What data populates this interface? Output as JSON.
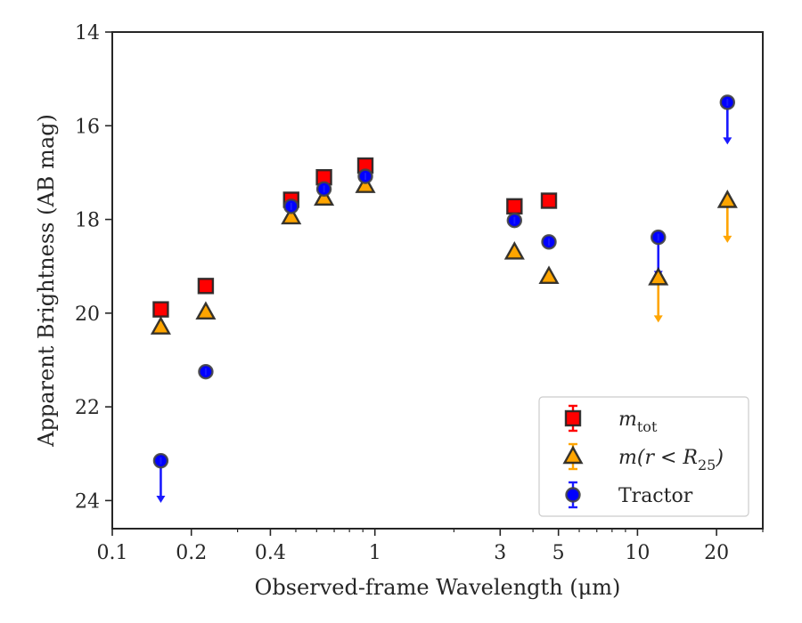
{
  "chart_data": {
    "type": "scatter",
    "xlabel": "Observed-frame Wavelength (μm)",
    "ylabel": "Apparent Brightness (AB mag)",
    "xscale": "log",
    "xlim": [
      0.1,
      30
    ],
    "ylim": [
      24.6,
      14
    ],
    "y_inverted": true,
    "grid": false,
    "legend_position": "lower-right",
    "xticks": [
      {
        "value": 0.1,
        "label": "0.1"
      },
      {
        "value": 0.2,
        "label": "0.2"
      },
      {
        "value": 0.4,
        "label": "0.4"
      },
      {
        "value": 1,
        "label": "1"
      },
      {
        "value": 3,
        "label": "3"
      },
      {
        "value": 5,
        "label": "5"
      },
      {
        "value": 10,
        "label": "10"
      },
      {
        "value": 20,
        "label": "20"
      }
    ],
    "yticks": [
      {
        "value": 14,
        "label": "14"
      },
      {
        "value": 16,
        "label": "16"
      },
      {
        "value": 18,
        "label": "18"
      },
      {
        "value": 20,
        "label": "20"
      },
      {
        "value": 22,
        "label": "22"
      },
      {
        "value": 24,
        "label": "24"
      }
    ],
    "series": [
      {
        "name": "m_tot",
        "legend_label": {
          "base": "m",
          "sub": "tot"
        },
        "marker": "square",
        "color": "#ff0000",
        "errorbar_color": "#ff0000",
        "points": [
          {
            "x": 0.153,
            "y": 19.92
          },
          {
            "x": 0.227,
            "y": 19.42
          },
          {
            "x": 0.48,
            "y": 17.58
          },
          {
            "x": 0.64,
            "y": 17.1
          },
          {
            "x": 0.92,
            "y": 16.85
          },
          {
            "x": 3.4,
            "y": 17.72
          },
          {
            "x": 4.6,
            "y": 17.6
          }
        ]
      },
      {
        "name": "m(r<R25)",
        "legend_label": {
          "base": "m(r < R",
          "sub": "25",
          "end": ")"
        },
        "marker": "triangle",
        "color": "#ffa500",
        "errorbar_color": "#ffa500",
        "points": [
          {
            "x": 0.153,
            "y": 20.3
          },
          {
            "x": 0.227,
            "y": 19.98
          },
          {
            "x": 0.48,
            "y": 17.95
          },
          {
            "x": 0.64,
            "y": 17.55
          },
          {
            "x": 0.92,
            "y": 17.28
          },
          {
            "x": 3.4,
            "y": 18.7
          },
          {
            "x": 4.6,
            "y": 19.22
          },
          {
            "x": 12,
            "y": 19.25,
            "upper_limit_to": 20.2
          },
          {
            "x": 22,
            "y": 17.6,
            "upper_limit_to": 18.5
          }
        ]
      },
      {
        "name": "Tractor",
        "legend_label": {
          "base": "Tractor"
        },
        "marker": "circle",
        "color": "#0000ff",
        "errorbar_color": "#1a1aff",
        "points": [
          {
            "x": 0.153,
            "y": 23.15,
            "upper_limit_to": 24.05
          },
          {
            "x": 0.227,
            "y": 21.25
          },
          {
            "x": 0.48,
            "y": 17.72
          },
          {
            "x": 0.64,
            "y": 17.35
          },
          {
            "x": 0.92,
            "y": 17.08
          },
          {
            "x": 3.4,
            "y": 18.02
          },
          {
            "x": 4.6,
            "y": 18.48
          },
          {
            "x": 12,
            "y": 18.38,
            "upper_limit_to": 19.25
          },
          {
            "x": 22,
            "y": 15.5,
            "upper_limit_to": 16.4
          }
        ]
      }
    ]
  }
}
